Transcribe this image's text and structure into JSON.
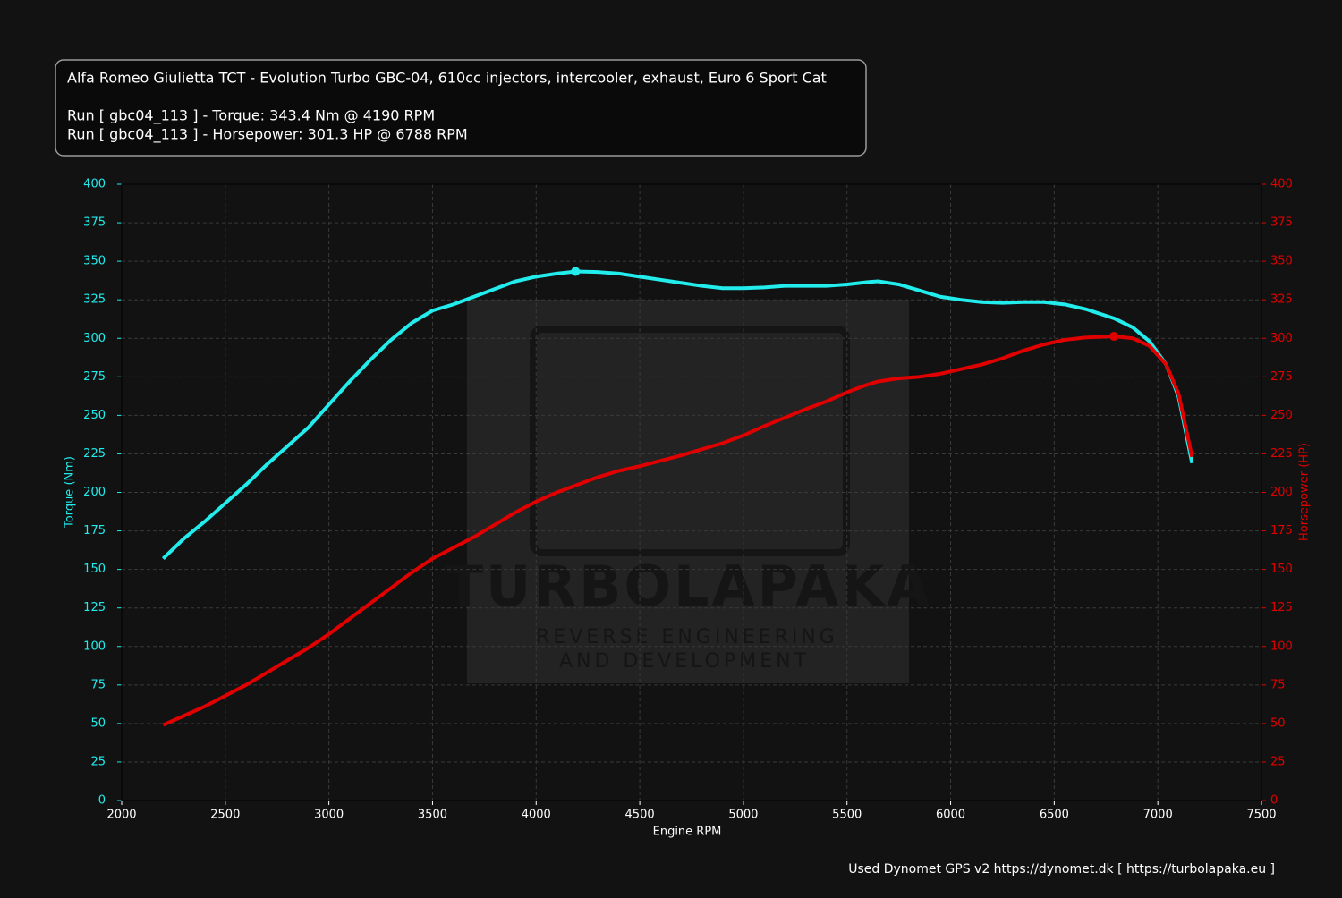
{
  "chart_data": {
    "type": "line",
    "title": "Alfa Romeo Giulietta TCT - Evolution Turbo GBC-04, 610cc injectors, intercooler, exhaust, Euro 6 Sport Cat",
    "annotations": [
      "Run [ gbc04_113 ] - Torque: 343.4 Nm @ 4190 RPM",
      "Run [ gbc04_113 ] - Horsepower: 301.3 HP @ 6788 RPM"
    ],
    "watermark": [
      "TURBOLAPAKA",
      "REVERSE ENGINEERING",
      "AND DEVELOPMENT"
    ],
    "footer": "Used Dynomet GPS v2 https://dynomet.dk [ https://turbolapaka.eu ]",
    "xlabel": "Engine RPM",
    "ylabel": "Torque (Nm)",
    "y2label": "Horsepower (HP)",
    "x": [
      2200,
      2300,
      2400,
      2500,
      2600,
      2700,
      2800,
      2900,
      3000,
      3100,
      3200,
      3300,
      3400,
      3500,
      3600,
      3700,
      3800,
      3900,
      4000,
      4100,
      4190,
      4300,
      4400,
      4500,
      4600,
      4700,
      4800,
      4900,
      5000,
      5100,
      5200,
      5300,
      5400,
      5500,
      5600,
      5650,
      5750,
      5850,
      5950,
      6050,
      6150,
      6250,
      6350,
      6450,
      6550,
      6650,
      6788,
      6880,
      6960,
      7040,
      7100,
      7165
    ],
    "series": [
      {
        "name": "Torque (Nm)",
        "color": "#22ecec",
        "axis": "y",
        "peak_index": 20,
        "values": [
          157,
          170,
          181,
          193,
          205,
          218,
          230,
          242,
          257,
          272,
          286,
          299,
          310,
          318,
          322,
          327,
          332,
          337,
          340,
          342,
          343.4,
          343,
          342,
          340,
          338,
          336,
          334,
          332.5,
          332.5,
          333,
          334,
          334,
          334,
          335,
          336.5,
          337,
          335,
          331,
          327,
          325,
          323.5,
          323,
          323.5,
          323.5,
          322,
          319,
          313,
          307,
          298,
          283,
          262,
          219
        ]
      },
      {
        "name": "Horsepower (HP)",
        "color": "#e00000",
        "axis": "y2",
        "peak_index": 46,
        "values": [
          49,
          55,
          61,
          68,
          75,
          83,
          91,
          99,
          108,
          118,
          128,
          138,
          148,
          157,
          164,
          171,
          179,
          187,
          194,
          200,
          204.5,
          210,
          214,
          217,
          220.5,
          224,
          228,
          232,
          237,
          243,
          248.5,
          254,
          259,
          265,
          270,
          272,
          274,
          275,
          277,
          280,
          283,
          287,
          292,
          296,
          299,
          300.5,
          301.3,
          300,
          295,
          283,
          264,
          223
        ]
      }
    ],
    "xlim": [
      2000,
      7500
    ],
    "xticks": [
      2000,
      2500,
      3000,
      3500,
      4000,
      4500,
      5000,
      5500,
      6000,
      6500,
      7000,
      7500
    ],
    "ylim": [
      0,
      400
    ],
    "yticks": [
      0,
      25,
      50,
      75,
      100,
      125,
      150,
      175,
      200,
      225,
      250,
      275,
      300,
      325,
      350,
      375,
      400
    ],
    "y2lim": [
      0,
      400
    ],
    "y2ticks": [
      0,
      25,
      50,
      75,
      100,
      125,
      150,
      175,
      200,
      225,
      250,
      275,
      300,
      325,
      350,
      375,
      400
    ],
    "grid": true
  }
}
